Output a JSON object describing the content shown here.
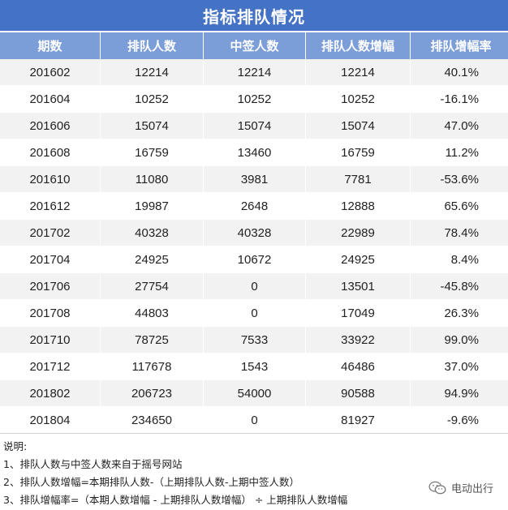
{
  "title": "指标排队情况",
  "columns": [
    "期数",
    "排队人数",
    "中签人数",
    "排队人数增幅",
    "排队增幅率"
  ],
  "rows": [
    [
      "201602",
      "12214",
      "12214",
      "12214",
      "40.1%"
    ],
    [
      "201604",
      "10252",
      "10252",
      "10252",
      "-16.1%"
    ],
    [
      "201606",
      "15074",
      "15074",
      "15074",
      "47.0%"
    ],
    [
      "201608",
      "16759",
      "13460",
      "16759",
      "11.2%"
    ],
    [
      "201610",
      "11080",
      "3981",
      "7781",
      "-53.6%"
    ],
    [
      "201612",
      "19987",
      "2648",
      "12888",
      "65.6%"
    ],
    [
      "201702",
      "40328",
      "40328",
      "22989",
      "78.4%"
    ],
    [
      "201704",
      "24925",
      "10672",
      "24925",
      "8.4%"
    ],
    [
      "201706",
      "27754",
      "0",
      "13501",
      "-45.8%"
    ],
    [
      "201708",
      "44803",
      "0",
      "17049",
      "26.3%"
    ],
    [
      "201710",
      "78725",
      "7533",
      "33922",
      "99.0%"
    ],
    [
      "201712",
      "117678",
      "1543",
      "46486",
      "37.0%"
    ],
    [
      "201802",
      "206723",
      "54000",
      "90588",
      "94.9%"
    ],
    [
      "201804",
      "234650",
      "0",
      "81927",
      "-9.6%"
    ]
  ],
  "notes": {
    "heading": "说明:",
    "lines": [
      "1、排队人数与中签人数来自于摇号网站",
      "2、排队人数增幅=本期排队人数-（上期排队人数-上期中签人数）",
      "3、排队增幅率=（本期人数增幅 - 上期排队人数增幅） ÷ 上期排队人数增幅"
    ]
  },
  "watermark": {
    "text": "电动出行",
    "icon": "wechat-icon"
  },
  "colors": {
    "title_bg": "#4472c4",
    "header_bg": "#7b9dd8",
    "stripe": "#f2f2f2"
  }
}
